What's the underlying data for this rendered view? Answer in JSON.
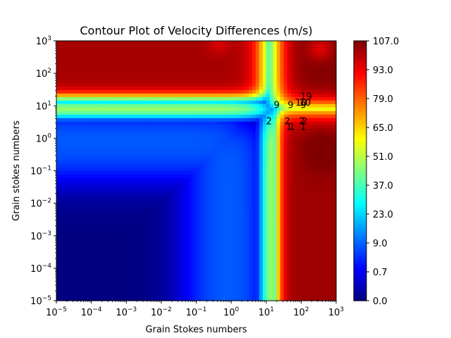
{
  "chart_data": {
    "type": "heatmap",
    "title": "Contour Plot of Velocity Differences (m/s)",
    "xlabel": "Grain Stokes numbers",
    "ylabel": "Grain stokes numbers",
    "x_scale": "log",
    "y_scale": "log",
    "xlim": [
      1e-05,
      1000
    ],
    "ylim": [
      1e-05,
      1000
    ],
    "x_ticks": [
      {
        "base": "10",
        "exp": "−5"
      },
      {
        "base": "10",
        "exp": "−4"
      },
      {
        "base": "10",
        "exp": "−3"
      },
      {
        "base": "10",
        "exp": "−2"
      },
      {
        "base": "10",
        "exp": "−1"
      },
      {
        "base": "10",
        "exp": "0"
      },
      {
        "base": "10",
        "exp": "1"
      },
      {
        "base": "10",
        "exp": "2"
      },
      {
        "base": "10",
        "exp": "3"
      }
    ],
    "y_ticks": [
      {
        "base": "10",
        "exp": "−5"
      },
      {
        "base": "10",
        "exp": "−4"
      },
      {
        "base": "10",
        "exp": "−3"
      },
      {
        "base": "10",
        "exp": "−2"
      },
      {
        "base": "10",
        "exp": "−1"
      },
      {
        "base": "10",
        "exp": "0"
      },
      {
        "base": "10",
        "exp": "1"
      },
      {
        "base": "10",
        "exp": "2"
      },
      {
        "base": "10",
        "exp": "3"
      }
    ],
    "colorbar": {
      "colormap": "jet",
      "range": [
        0.0,
        107.0
      ],
      "tick_labels": [
        "0.0",
        "0.7",
        "9.0",
        "23.0",
        "37.0",
        "51.0",
        "65.0",
        "79.0",
        "93.0",
        "107.0"
      ],
      "tick_values": [
        0.0,
        0.7,
        9.0,
        23.0,
        37.0,
        51.0,
        65.0,
        79.0,
        93.0,
        107.0
      ]
    },
    "contour_labels": [
      {
        "text": "9",
        "x": 20,
        "y": 11
      },
      {
        "text": "9",
        "x": 50,
        "y": 11
      },
      {
        "text": "9",
        "x": 115,
        "y": 11
      },
      {
        "text": "10",
        "x": 100,
        "y": 13
      },
      {
        "text": "10",
        "x": 130,
        "y": 13
      },
      {
        "text": "19",
        "x": 140,
        "y": 20
      },
      {
        "text": "2",
        "x": 12,
        "y": 3.5
      },
      {
        "text": "2",
        "x": 40,
        "y": 3.5
      },
      {
        "text": "2",
        "x": 105,
        "y": 3.5
      },
      {
        "text": "2",
        "x": 125,
        "y": 3.5
      },
      {
        "text": "1",
        "x": 45,
        "y": 2.3
      },
      {
        "text": "1",
        "x": 55,
        "y": 2.3
      },
      {
        "text": "1",
        "x": 115,
        "y": 2.3
      }
    ]
  }
}
